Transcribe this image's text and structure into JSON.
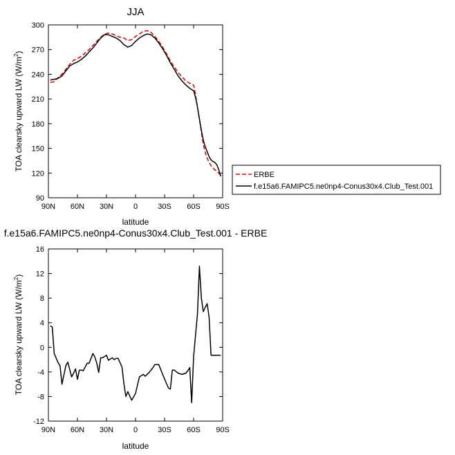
{
  "chart_data": [
    {
      "type": "line",
      "title": "JJA",
      "xlabel": "latitude",
      "ylabel_main": "TOA clearsky upward LW (W/m",
      "ylabel_sup": "2",
      "ylabel_close": ")",
      "xlim": [
        90,
        -90
      ],
      "ylim": [
        90,
        300
      ],
      "x_ticks": [
        90,
        60,
        30,
        0,
        -30,
        -60,
        -90
      ],
      "x_tick_labels": [
        "90N",
        "60N",
        "30N",
        "0",
        "30S",
        "60S",
        "90S"
      ],
      "y_ticks": [
        90,
        120,
        150,
        180,
        210,
        240,
        270,
        300
      ],
      "y_tick_labels": [
        "90",
        "120",
        "150",
        "180",
        "210",
        "240",
        "270",
        "300"
      ],
      "grid": false,
      "legend_position": "right",
      "series": [
        {
          "name": "ERBE",
          "color": "#dd0000",
          "style": "dashed",
          "x": [
            88,
            84,
            80,
            76,
            72,
            68,
            64,
            60,
            56,
            52,
            48,
            44,
            40,
            36,
            32,
            28,
            24,
            20,
            16,
            12,
            8,
            4,
            0,
            -4,
            -8,
            -12,
            -16,
            -20,
            -24,
            -28,
            -32,
            -36,
            -40,
            -44,
            -48,
            -52,
            -56,
            -60,
            -62,
            -64,
            -66,
            -68,
            -70,
            -72,
            -74,
            -76,
            -78,
            -80,
            -82,
            -84,
            -86,
            -88
          ],
          "y": [
            230,
            231,
            236,
            240,
            246,
            252,
            257,
            259,
            262,
            266,
            270,
            275,
            280,
            285,
            289,
            290,
            289,
            287,
            285,
            284,
            281,
            282,
            286,
            289,
            292,
            293,
            291,
            286,
            280,
            273,
            265,
            256,
            249,
            242,
            237,
            232,
            229,
            227,
            215,
            200,
            185,
            170,
            155,
            145,
            138,
            133,
            129,
            126,
            124,
            122,
            120,
            117
          ]
        },
        {
          "name": "f.e15a6.FAMIPC5.ne0np4-Conus30x4.Club_Test.001",
          "color": "#000000",
          "style": "solid",
          "x": [
            88,
            84,
            80,
            76,
            72,
            68,
            64,
            60,
            56,
            52,
            48,
            44,
            40,
            36,
            32,
            28,
            24,
            20,
            16,
            12,
            8,
            4,
            0,
            -4,
            -8,
            -12,
            -16,
            -20,
            -24,
            -28,
            -32,
            -36,
            -40,
            -44,
            -48,
            -52,
            -56,
            -60,
            -62,
            -64,
            -66,
            -68,
            -70,
            -72,
            -74,
            -76,
            -78,
            -80,
            -82,
            -84,
            -86,
            -88
          ],
          "y": [
            233,
            234,
            235,
            238,
            244,
            250,
            253,
            255,
            258,
            262,
            267,
            272,
            278,
            284,
            288,
            288,
            286,
            284,
            281,
            276,
            273,
            275,
            280,
            284,
            287,
            289,
            288,
            284,
            278,
            271,
            263,
            254,
            246,
            238,
            232,
            227,
            223,
            220,
            212,
            200,
            186,
            172,
            160,
            152,
            146,
            140,
            136,
            134,
            133,
            130,
            124,
            116
          ]
        }
      ]
    },
    {
      "type": "line",
      "title": "f.e15a6.FAMIPC5.ne0np4-Conus30x4.Club_Test.001 - ERBE",
      "xlabel": "latitude",
      "ylabel_main": "TOA clearsky upward LW (W/m",
      "ylabel_sup": "2",
      "ylabel_close": ")",
      "xlim": [
        90,
        -90
      ],
      "ylim": [
        -12,
        16
      ],
      "x_ticks": [
        90,
        60,
        30,
        0,
        -30,
        -60,
        -90
      ],
      "x_tick_labels": [
        "90N",
        "60N",
        "30N",
        "0",
        "30S",
        "60S",
        "90S"
      ],
      "y_ticks": [
        -12,
        -8,
        -4,
        0,
        4,
        8,
        12,
        16
      ],
      "y_tick_labels": [
        "-12",
        "-8",
        "-4",
        "0",
        "4",
        "8",
        "12",
        "16"
      ],
      "grid": false,
      "series": [
        {
          "color": "#000000",
          "style": "solid",
          "x": [
            88,
            86,
            84,
            80,
            78,
            76,
            72,
            70,
            66,
            64,
            62,
            60,
            58,
            56,
            54,
            50,
            48,
            44,
            42,
            40,
            38,
            36,
            34,
            30,
            28,
            24,
            22,
            20,
            18,
            14,
            12,
            10,
            8,
            4,
            0,
            -4,
            -6,
            -8,
            -10,
            -14,
            -18,
            -20,
            -24,
            -26,
            -28,
            -32,
            -34,
            -36,
            -38,
            -40,
            -44,
            -48,
            -52,
            -54,
            -56,
            -58,
            -60,
            -62,
            -64,
            -66,
            -68,
            -70,
            -72,
            -74,
            -76,
            -78,
            -80,
            -82,
            -84,
            -86,
            -88
          ],
          "y": [
            3.5,
            3.3,
            -1,
            -2.5,
            -3,
            -6,
            -3,
            -2.4,
            -4.8,
            -4.2,
            -3.5,
            -5.2,
            -3.7,
            -3.7,
            -3.8,
            -2.6,
            -2.6,
            -1,
            -1.6,
            -2.6,
            -4.1,
            -1.7,
            -1.7,
            -1.3,
            -2.1,
            -1.7,
            -2,
            -1.8,
            -1.8,
            -3.2,
            -5.9,
            -8,
            -7.2,
            -8.6,
            -7.5,
            -4.8,
            -4.6,
            -4.4,
            -4.7,
            -4.1,
            -3.3,
            -2.8,
            -2.8,
            -3.6,
            -4.4,
            -5.9,
            -6.6,
            -6.8,
            -3.7,
            -3.7,
            -4.2,
            -4.4,
            -4.2,
            -3.8,
            -3.3,
            -9,
            -1.5,
            2,
            5.5,
            13.2,
            8,
            5.8,
            6.5,
            7.1,
            4.9,
            -1.3,
            -1.3,
            -1.3,
            -1.3,
            -1.3,
            -1.3
          ]
        }
      ]
    }
  ]
}
